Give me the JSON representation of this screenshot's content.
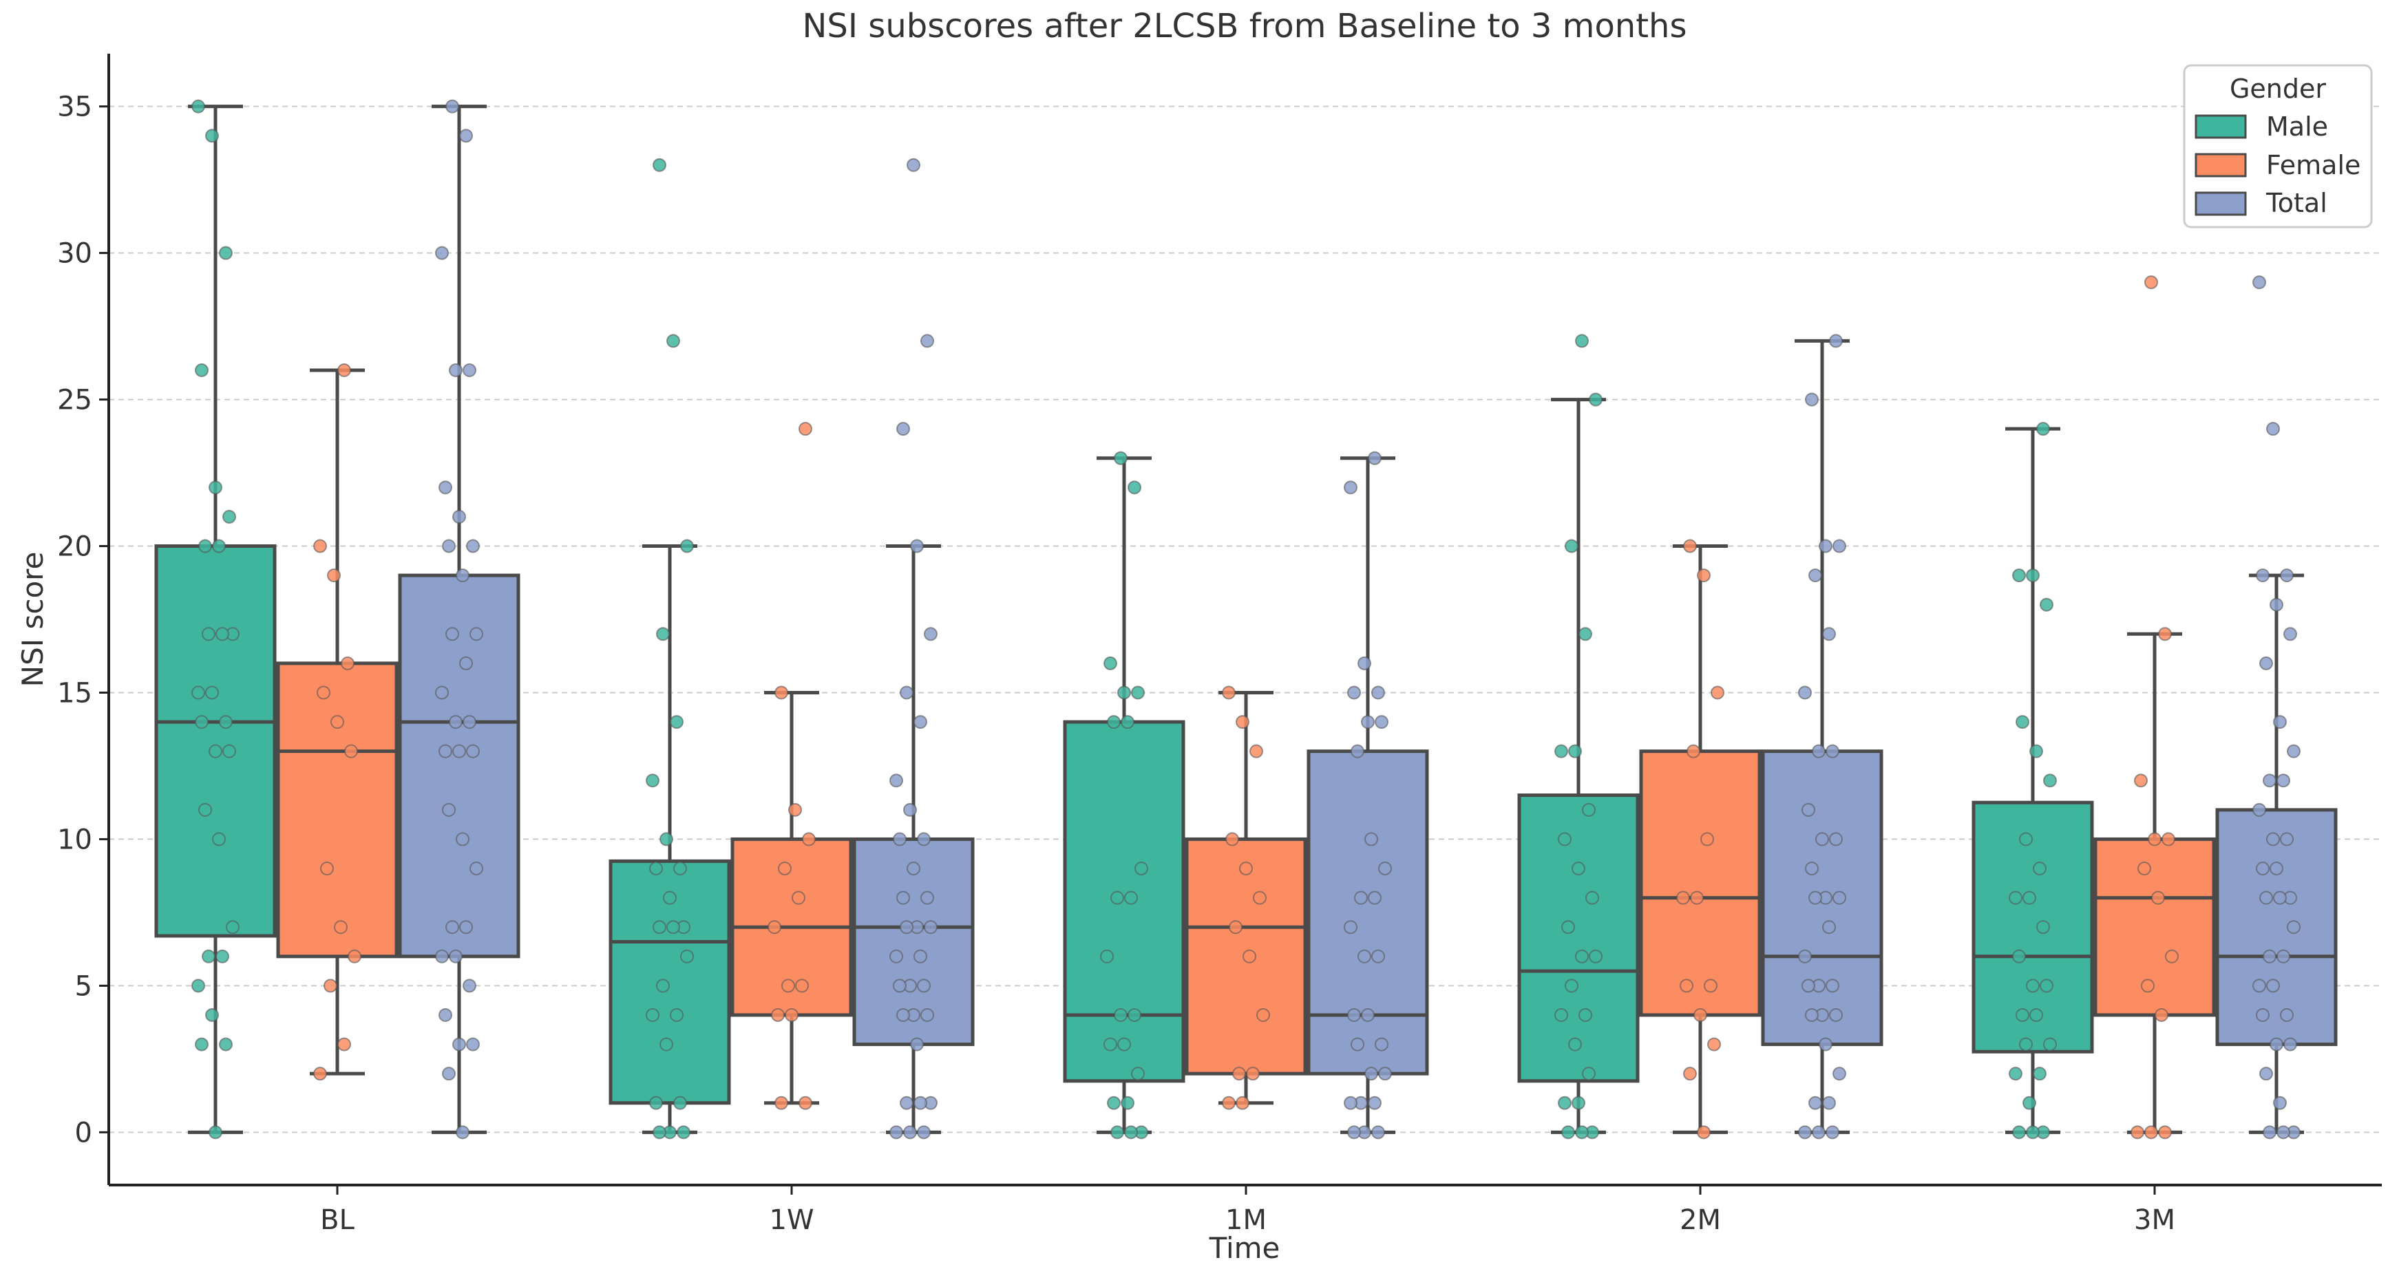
{
  "chart_data": {
    "type": "box",
    "title": "NSI subscores after 2LCSB from Baseline to 3 months",
    "xlabel": "Time",
    "ylabel": "NSI score",
    "categories": [
      "BL",
      "1W",
      "1M",
      "2M",
      "3M"
    ],
    "ylim": [
      -1.8,
      36.8
    ],
    "yticks": [
      0,
      5,
      10,
      15,
      20,
      25,
      30,
      35
    ],
    "grid": "horizontal-dashed",
    "legend": {
      "title": "Gender",
      "placement": "top-right",
      "entries": [
        "Male",
        "Female",
        "Total"
      ]
    },
    "colors": {
      "Male": "#3fb59d",
      "Female": "#fc8d62",
      "Total": "#8da0cb",
      "box_edge": "#4a4a4a",
      "grid": "#cccccc"
    },
    "series": [
      {
        "name": "Male",
        "boxes": [
          {
            "whislo": 0,
            "q1": 6.7,
            "med": 14,
            "q3": 20,
            "whishi": 35
          },
          {
            "whislo": 0,
            "q1": 1,
            "med": 6.5,
            "q3": 9.25,
            "whishi": 20
          },
          {
            "whislo": 0,
            "q1": 1.75,
            "med": 4,
            "q3": 14,
            "whishi": 23
          },
          {
            "whislo": 0,
            "q1": 1.75,
            "med": 5.5,
            "q3": 11.5,
            "whishi": 25
          },
          {
            "whislo": 0,
            "q1": 2.75,
            "med": 6,
            "q3": 11.25,
            "whishi": 24
          }
        ],
        "points": [
          [
            35,
            34,
            30,
            26,
            22,
            21,
            20,
            20,
            17,
            17,
            17,
            15,
            15,
            14,
            14,
            13,
            13,
            11,
            10,
            7,
            6,
            6,
            5,
            4,
            3,
            3,
            0
          ],
          [
            33,
            27,
            20,
            17,
            14,
            12,
            10,
            9,
            9,
            8,
            7,
            7,
            7,
            6,
            5,
            4,
            4,
            3,
            1,
            1,
            0,
            0,
            0
          ],
          [
            23,
            22,
            16,
            15,
            15,
            14,
            14,
            9,
            8,
            8,
            6,
            4,
            4,
            3,
            3,
            2,
            1,
            1,
            0,
            0,
            0
          ],
          [
            27,
            25,
            20,
            17,
            13,
            13,
            11,
            10,
            9,
            8,
            7,
            6,
            6,
            5,
            4,
            4,
            3,
            2,
            1,
            1,
            0,
            0,
            0
          ],
          [
            24,
            19,
            19,
            18,
            14,
            13,
            12,
            10,
            9,
            8,
            8,
            7,
            6,
            5,
            5,
            4,
            4,
            3,
            3,
            2,
            2,
            1,
            0,
            0,
            0
          ]
        ]
      },
      {
        "name": "Female",
        "boxes": [
          {
            "whislo": 2,
            "q1": 6,
            "med": 13,
            "q3": 16,
            "whishi": 26
          },
          {
            "whislo": 1,
            "q1": 4,
            "med": 7,
            "q3": 10,
            "whishi": 15
          },
          {
            "whislo": 1,
            "q1": 2,
            "med": 7,
            "q3": 10,
            "whishi": 15
          },
          {
            "whislo": 0,
            "q1": 4,
            "med": 8,
            "q3": 13,
            "whishi": 20
          },
          {
            "whislo": 0,
            "q1": 4,
            "med": 8,
            "q3": 10,
            "whishi": 17
          }
        ],
        "points": [
          [
            26,
            20,
            19,
            16,
            15,
            14,
            13,
            9,
            7,
            6,
            5,
            3,
            2
          ],
          [
            24,
            15,
            11,
            10,
            9,
            8,
            7,
            5,
            5,
            4,
            4,
            1,
            1
          ],
          [
            15,
            14,
            13,
            10,
            9,
            8,
            7,
            6,
            4,
            2,
            2,
            1,
            1
          ],
          [
            20,
            19,
            15,
            13,
            10,
            8,
            8,
            5,
            5,
            4,
            3,
            2,
            0
          ],
          [
            29,
            17,
            12,
            10,
            10,
            9,
            8,
            6,
            5,
            4,
            0,
            0,
            0
          ]
        ]
      },
      {
        "name": "Total",
        "boxes": [
          {
            "whislo": 0,
            "q1": 6,
            "med": 14,
            "q3": 19,
            "whishi": 35
          },
          {
            "whislo": 0,
            "q1": 3,
            "med": 7,
            "q3": 10,
            "whishi": 20
          },
          {
            "whislo": 0,
            "q1": 2,
            "med": 4,
            "q3": 13,
            "whishi": 23
          },
          {
            "whislo": 0,
            "q1": 3,
            "med": 6,
            "q3": 13,
            "whishi": 27
          },
          {
            "whislo": 0,
            "q1": 3,
            "med": 6,
            "q3": 11,
            "whishi": 19
          }
        ],
        "points": [
          [
            35,
            34,
            30,
            26,
            26,
            22,
            21,
            20,
            20,
            19,
            17,
            17,
            16,
            15,
            14,
            14,
            13,
            13,
            13,
            11,
            10,
            9,
            7,
            7,
            6,
            6,
            5,
            4,
            3,
            3,
            2,
            0
          ],
          [
            33,
            27,
            24,
            20,
            17,
            15,
            14,
            12,
            11,
            10,
            10,
            9,
            8,
            8,
            7,
            7,
            7,
            6,
            6,
            5,
            5,
            5,
            4,
            4,
            4,
            3,
            1,
            1,
            1,
            0,
            0,
            0
          ],
          [
            23,
            22,
            16,
            15,
            15,
            14,
            14,
            13,
            10,
            9,
            8,
            8,
            7,
            6,
            6,
            4,
            4,
            3,
            3,
            2,
            2,
            1,
            1,
            1,
            0,
            0,
            0
          ],
          [
            27,
            25,
            20,
            20,
            19,
            17,
            15,
            13,
            13,
            11,
            10,
            10,
            9,
            8,
            8,
            8,
            7,
            6,
            5,
            5,
            5,
            4,
            4,
            4,
            3,
            2,
            1,
            1,
            0,
            0,
            0
          ],
          [
            29,
            24,
            19,
            19,
            18,
            17,
            16,
            14,
            13,
            12,
            12,
            11,
            10,
            10,
            9,
            9,
            8,
            8,
            8,
            7,
            6,
            6,
            5,
            5,
            4,
            4,
            3,
            3,
            2,
            1,
            0,
            0,
            0
          ]
        ]
      }
    ]
  }
}
